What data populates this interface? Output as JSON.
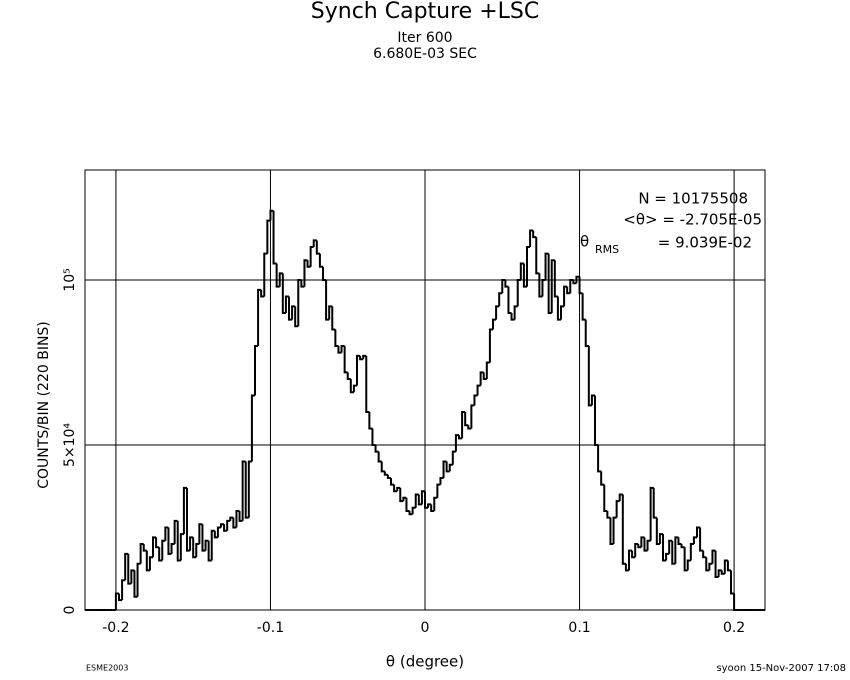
{
  "chart_data": {
    "type": "histogram",
    "title": "Synch Capture +LSC",
    "subtitle": [
      "Iter 600",
      "6.680E-03 SEC"
    ],
    "x_label": "θ (degree)",
    "y_label": "COUNTS/BIN (220 BINS)",
    "stats": [
      "N = 10175508",
      "<θ> = -2.705E-05"
    ],
    "rms": {
      "symbol": "θ",
      "subscript": "RMS",
      "text": "=  9.039E-02"
    },
    "footer_left": "ESME2003",
    "footer_right": "syoon 15-Nov-2007 17:08",
    "color": "#000000",
    "grid": true,
    "xlim": [
      -0.22,
      0.22
    ],
    "ylim": [
      0,
      133333
    ],
    "xticks": [
      -0.2,
      -0.1,
      0,
      0.1,
      0.2
    ],
    "yticks": [
      0,
      {
        "value": 50000,
        "label": "5×10⁴"
      },
      {
        "value": 100000,
        "label": "10⁵"
      }
    ],
    "bins": [
      -0.22,
      -0.218,
      -0.216,
      -0.214,
      -0.212,
      -0.21,
      -0.208,
      -0.206,
      -0.204,
      -0.202,
      -0.2,
      -0.198,
      -0.196,
      -0.194,
      -0.192,
      -0.19,
      -0.188,
      -0.186,
      -0.184,
      -0.182,
      -0.18,
      -0.178,
      -0.176,
      -0.174,
      -0.172,
      -0.17,
      -0.168,
      -0.166,
      -0.164,
      -0.162,
      -0.16,
      -0.158,
      -0.156,
      -0.154,
      -0.152,
      -0.15,
      -0.148,
      -0.146,
      -0.144,
      -0.142,
      -0.14,
      -0.138,
      -0.136,
      -0.134,
      -0.132,
      -0.13,
      -0.128,
      -0.126,
      -0.124,
      -0.122,
      -0.12,
      -0.118,
      -0.116,
      -0.114,
      -0.112,
      -0.11,
      -0.108,
      -0.106,
      -0.104,
      -0.102,
      -0.1,
      -0.098,
      -0.096,
      -0.094,
      -0.092,
      -0.09,
      -0.088,
      -0.086,
      -0.084,
      -0.082,
      -0.08,
      -0.078,
      -0.076,
      -0.074,
      -0.072,
      -0.07,
      -0.068,
      -0.066,
      -0.064,
      -0.062,
      -0.06,
      -0.058,
      -0.056,
      -0.054,
      -0.052,
      -0.05,
      -0.048,
      -0.046,
      -0.044,
      -0.042,
      -0.04,
      -0.038,
      -0.036,
      -0.034,
      -0.032,
      -0.03,
      -0.028,
      -0.026,
      -0.024,
      -0.022,
      -0.02,
      -0.018,
      -0.016,
      -0.014,
      -0.012,
      -0.01,
      -0.008,
      -0.006,
      -0.004,
      -0.002,
      0,
      0.002,
      0.004,
      0.006,
      0.008,
      0.01,
      0.012,
      0.014,
      0.016,
      0.018,
      0.02,
      0.022,
      0.024,
      0.026,
      0.028,
      0.03,
      0.032,
      0.034,
      0.036,
      0.038,
      0.04,
      0.042,
      0.044,
      0.046,
      0.048,
      0.05,
      0.052,
      0.054,
      0.056,
      0.058,
      0.06,
      0.062,
      0.064,
      0.066,
      0.068,
      0.07,
      0.072,
      0.074,
      0.076,
      0.078,
      0.08,
      0.082,
      0.084,
      0.086,
      0.088,
      0.09,
      0.092,
      0.094,
      0.096,
      0.098,
      0.1,
      0.102,
      0.104,
      0.106,
      0.108,
      0.11,
      0.112,
      0.114,
      0.116,
      0.118,
      0.12,
      0.122,
      0.124,
      0.126,
      0.128,
      0.13,
      0.132,
      0.134,
      0.136,
      0.138,
      0.14,
      0.142,
      0.144,
      0.146,
      0.148,
      0.15,
      0.152,
      0.154,
      0.156,
      0.158,
      0.16,
      0.162,
      0.164,
      0.166,
      0.168,
      0.17,
      0.172,
      0.174,
      0.176,
      0.178,
      0.18,
      0.182,
      0.184,
      0.186,
      0.188,
      0.19,
      0.192,
      0.194,
      0.196,
      0.198,
      0.2,
      0.202,
      0.204,
      0.206,
      0.208,
      0.21,
      0.212,
      0.214,
      0.216,
      0.218,
      0.22
    ],
    "values": [
      0,
      0,
      0,
      0,
      0,
      0,
      0,
      0,
      0,
      0,
      5000,
      3000,
      9000,
      17000,
      8000,
      12000,
      4000,
      14000,
      20000,
      18000,
      12000,
      16000,
      22000,
      19000,
      15000,
      21000,
      25000,
      17000,
      20000,
      27000,
      15000,
      23000,
      37000,
      18000,
      22000,
      16000,
      20000,
      26000,
      18000,
      21000,
      15000,
      24000,
      22000,
      25000,
      26000,
      24000,
      27000,
      28000,
      25000,
      30000,
      27000,
      45000,
      28000,
      45000,
      65000,
      80000,
      97000,
      95000,
      108000,
      118000,
      121000,
      105000,
      98000,
      102000,
      90000,
      95000,
      88000,
      92000,
      86000,
      100000,
      98000,
      106000,
      104000,
      110000,
      112000,
      108000,
      104000,
      100000,
      88000,
      92000,
      85000,
      80000,
      78000,
      80000,
      72000,
      70000,
      66000,
      68000,
      77000,
      76000,
      77000,
      60000,
      55000,
      50000,
      48000,
      45000,
      42000,
      41000,
      40000,
      38000,
      36000,
      37000,
      33000,
      34000,
      30000,
      29000,
      31000,
      35000,
      32000,
      36000,
      31000,
      32000,
      30000,
      34000,
      38000,
      40000,
      45000,
      42000,
      44000,
      48000,
      53000,
      52000,
      60000,
      56000,
      55000,
      62000,
      65000,
      68000,
      72000,
      70000,
      75000,
      85000,
      88000,
      92000,
      96000,
      100000,
      98000,
      90000,
      88000,
      92000,
      100000,
      105000,
      98000,
      110000,
      115000,
      113000,
      102000,
      95000,
      100000,
      108000,
      90000,
      106000,
      95000,
      88000,
      92000,
      98000,
      96000,
      100000,
      99000,
      101000,
      96000,
      88000,
      80000,
      62000,
      65000,
      50000,
      42000,
      38000,
      30000,
      28000,
      20000,
      28000,
      33000,
      35000,
      14000,
      12000,
      18000,
      16000,
      20000,
      19000,
      22000,
      18000,
      21000,
      37000,
      28000,
      20000,
      23000,
      15000,
      17000,
      21000,
      14000,
      22000,
      20000,
      19000,
      12000,
      15000,
      20000,
      22000,
      25000,
      18000,
      16000,
      12000,
      14000,
      18000,
      10000,
      12000,
      11000,
      15000,
      12000,
      5000,
      0,
      0,
      0,
      0,
      0,
      0,
      0,
      0,
      0,
      0
    ]
  }
}
